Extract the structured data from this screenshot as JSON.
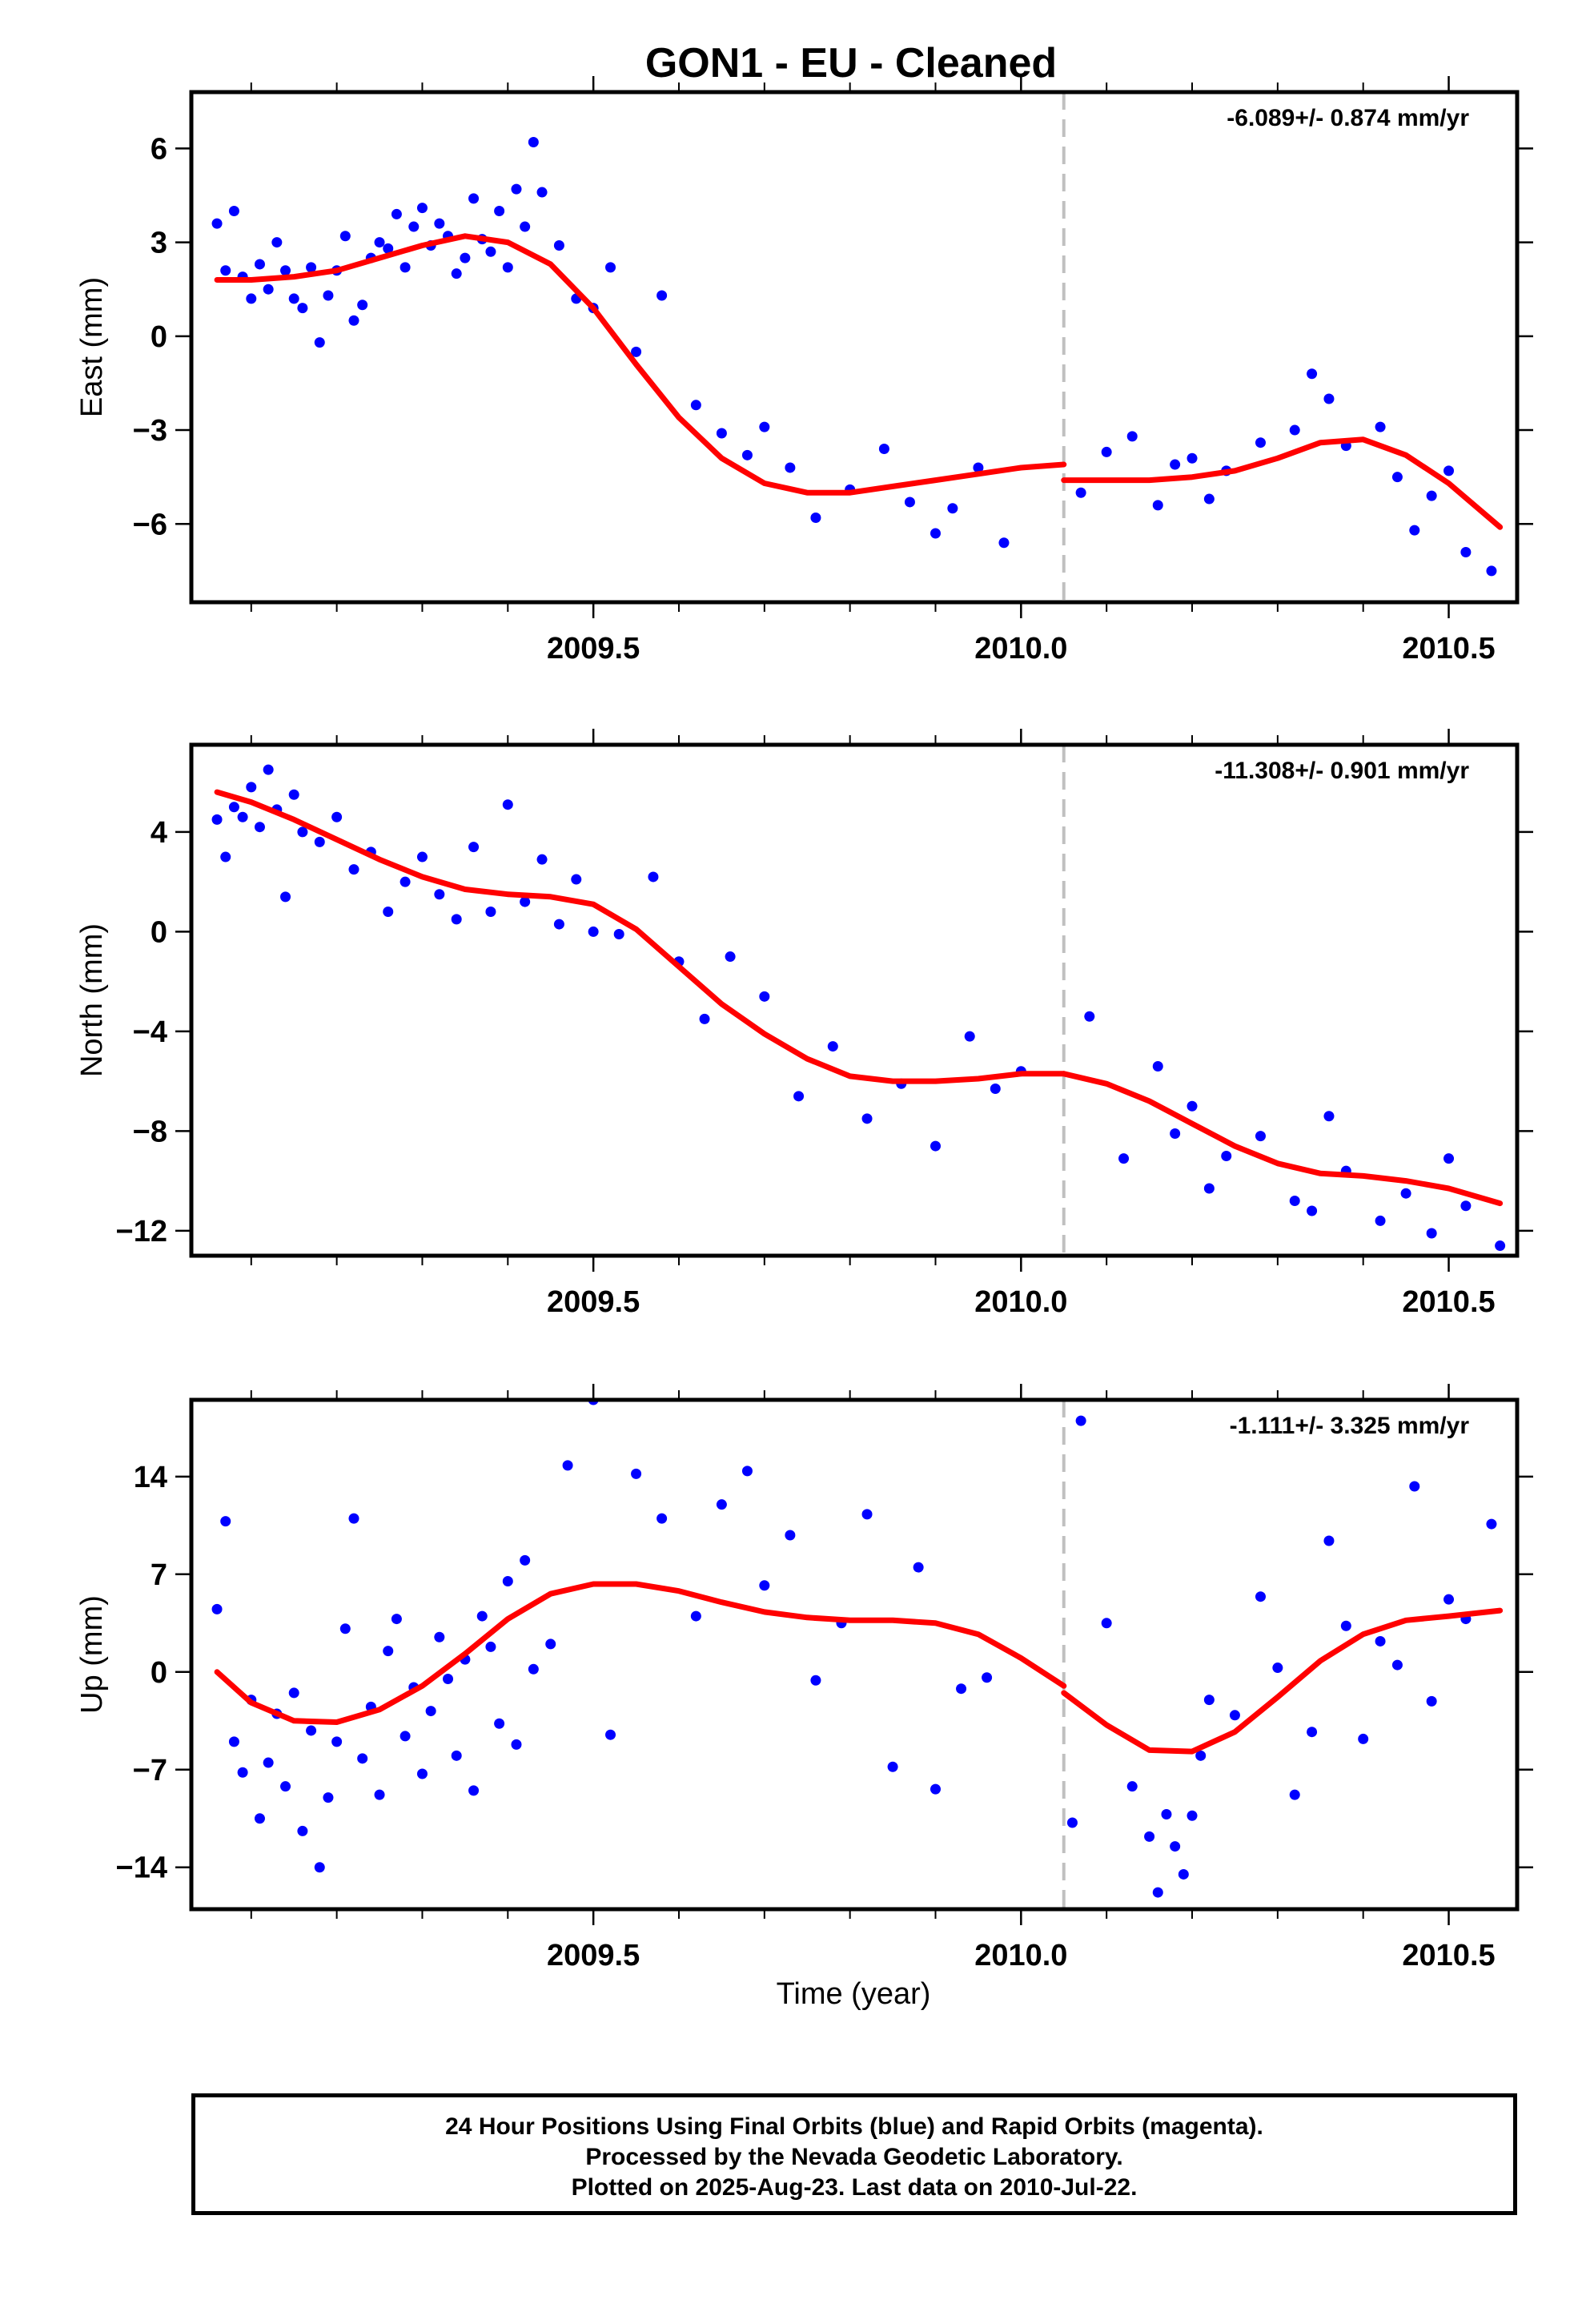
{
  "title": "GON1  - EU - Cleaned",
  "xlabel": "Time (year)",
  "footer": {
    "line1": "24 Hour Positions Using Final Orbits (blue) and Rapid Orbits (magenta).",
    "line2": "Processed by the Nevada Geodetic Laboratory.",
    "line3": "Plotted on 2025-Aug-23. Last data on 2010-Jul-22."
  },
  "colors": {
    "final_orbits": "#0000ff",
    "model": "#ff0000",
    "equipment_change": "#c0c0c0"
  },
  "chart_data": [
    {
      "type": "scatter",
      "ylabel": "East (mm)",
      "rate": "-6.089+/- 0.874 mm/yr",
      "xlim": [
        2009.03,
        2010.58
      ],
      "ylim": [
        -8.5,
        7.8
      ],
      "xticks": [
        2009.5,
        2010.0,
        2010.5
      ],
      "xtick_labels": [
        "2009.5",
        "2010.0",
        "2010.5"
      ],
      "yticks": [
        -6,
        -3,
        0,
        3,
        6
      ],
      "ytick_labels": [
        "−6",
        "−3",
        "0",
        "3",
        "6"
      ],
      "offset_line_x": 2010.05,
      "series": [
        {
          "kind": "points",
          "x": [
            2009.06,
            2009.07,
            2009.08,
            2009.09,
            2009.1,
            2009.11,
            2009.12,
            2009.13,
            2009.14,
            2009.15,
            2009.16,
            2009.17,
            2009.18,
            2009.19,
            2009.2,
            2009.21,
            2009.22,
            2009.23,
            2009.24,
            2009.25,
            2009.26,
            2009.27,
            2009.28,
            2009.29,
            2009.3,
            2009.31,
            2009.32,
            2009.33,
            2009.34,
            2009.35,
            2009.36,
            2009.37,
            2009.38,
            2009.39,
            2009.4,
            2009.41,
            2009.42,
            2009.43,
            2009.44,
            2009.46,
            2009.48,
            2009.5,
            2009.52,
            2009.55,
            2009.58,
            2009.62,
            2009.65,
            2009.68,
            2009.7,
            2009.73,
            2009.76,
            2009.8,
            2009.84,
            2009.87,
            2009.9,
            2009.92,
            2009.95,
            2009.98,
            2010.07,
            2010.1,
            2010.13,
            2010.16,
            2010.18,
            2010.2,
            2010.22,
            2010.24,
            2010.28,
            2010.32,
            2010.34,
            2010.36,
            2010.38,
            2010.42,
            2010.44,
            2010.46,
            2010.48,
            2010.5,
            2010.52,
            2010.55
          ],
          "y": [
            3.6,
            2.1,
            4.0,
            1.9,
            1.2,
            2.3,
            1.5,
            3.0,
            2.1,
            1.2,
            0.9,
            2.2,
            -0.2,
            1.3,
            2.1,
            3.2,
            0.5,
            1.0,
            2.5,
            3.0,
            2.8,
            3.9,
            2.2,
            3.5,
            4.1,
            2.9,
            3.6,
            3.2,
            2.0,
            2.5,
            4.4,
            3.1,
            2.7,
            4.0,
            2.2,
            4.7,
            3.5,
            6.2,
            4.6,
            2.9,
            1.2,
            0.9,
            2.2,
            -0.5,
            1.3,
            -2.2,
            -3.1,
            -3.8,
            -2.9,
            -4.2,
            -5.8,
            -4.9,
            -3.6,
            -5.3,
            -6.3,
            -5.5,
            -4.2,
            -6.6,
            -5.0,
            -3.7,
            -3.2,
            -5.4,
            -4.1,
            -3.9,
            -5.2,
            -4.3,
            -3.4,
            -3.0,
            -1.2,
            -2.0,
            -3.5,
            -2.9,
            -4.5,
            -6.2,
            -5.1,
            -4.3,
            -6.9,
            -7.5
          ]
        },
        {
          "kind": "line",
          "x": [
            2009.06,
            2009.1,
            2009.15,
            2009.2,
            2009.25,
            2009.3,
            2009.35,
            2009.4,
            2009.45,
            2009.5,
            2009.55,
            2009.6,
            2009.65,
            2009.7,
            2009.75,
            2009.8,
            2009.85,
            2009.9,
            2009.95,
            2010.0,
            2010.05
          ],
          "y": [
            1.8,
            1.8,
            1.9,
            2.1,
            2.5,
            2.9,
            3.2,
            3.0,
            2.3,
            0.9,
            -0.9,
            -2.6,
            -3.9,
            -4.7,
            -5.0,
            -5.0,
            -4.8,
            -4.6,
            -4.4,
            -4.2,
            -4.1
          ]
        },
        {
          "kind": "line",
          "x": [
            2010.05,
            2010.1,
            2010.15,
            2010.2,
            2010.25,
            2010.3,
            2010.35,
            2010.4,
            2010.45,
            2010.5,
            2010.56
          ],
          "y": [
            -4.6,
            -4.6,
            -4.6,
            -4.5,
            -4.3,
            -3.9,
            -3.4,
            -3.3,
            -3.8,
            -4.7,
            -6.1
          ]
        }
      ]
    },
    {
      "type": "scatter",
      "ylabel": "North (mm)",
      "rate": "-11.308+/- 0.901 mm/yr",
      "xlim": [
        2009.03,
        2010.58
      ],
      "ylim": [
        -13.0,
        7.5
      ],
      "xticks": [
        2009.5,
        2010.0,
        2010.5
      ],
      "xtick_labels": [
        "2009.5",
        "2010.0",
        "2010.5"
      ],
      "yticks": [
        -12,
        -8,
        -4,
        0,
        4
      ],
      "ytick_labels": [
        "−12",
        "−8",
        "−4",
        "0",
        "4"
      ],
      "offset_line_x": 2010.05,
      "series": [
        {
          "kind": "points",
          "x": [
            2009.06,
            2009.07,
            2009.08,
            2009.09,
            2009.1,
            2009.11,
            2009.12,
            2009.13,
            2009.14,
            2009.15,
            2009.16,
            2009.18,
            2009.2,
            2009.22,
            2009.24,
            2009.26,
            2009.28,
            2009.3,
            2009.32,
            2009.34,
            2009.36,
            2009.38,
            2009.4,
            2009.42,
            2009.44,
            2009.46,
            2009.48,
            2009.5,
            2009.53,
            2009.57,
            2009.6,
            2009.63,
            2009.66,
            2009.7,
            2009.74,
            2009.78,
            2009.82,
            2009.86,
            2009.9,
            2009.94,
            2009.97,
            2010.0,
            2010.08,
            2010.12,
            2010.16,
            2010.18,
            2010.2,
            2010.22,
            2010.24,
            2010.28,
            2010.32,
            2010.34,
            2010.36,
            2010.38,
            2010.42,
            2010.45,
            2010.48,
            2010.5,
            2010.52,
            2010.56
          ],
          "y": [
            4.5,
            3.0,
            5.0,
            4.6,
            5.8,
            4.2,
            6.5,
            4.9,
            1.4,
            5.5,
            4.0,
            3.6,
            4.6,
            2.5,
            3.2,
            0.8,
            2.0,
            3.0,
            1.5,
            0.5,
            3.4,
            0.8,
            5.1,
            1.2,
            2.9,
            0.3,
            2.1,
            0.0,
            -0.1,
            2.2,
            -1.2,
            -3.5,
            -1.0,
            -2.6,
            -6.6,
            -4.6,
            -7.5,
            -6.1,
            -8.6,
            -4.2,
            -6.3,
            -5.6,
            -3.4,
            -9.1,
            -5.4,
            -8.1,
            -7.0,
            -10.3,
            -9.0,
            -8.2,
            -10.8,
            -11.2,
            -7.4,
            -9.6,
            -11.6,
            -10.5,
            -12.1,
            -9.1,
            -11.0,
            -12.6
          ]
        },
        {
          "kind": "line",
          "x": [
            2009.06,
            2009.1,
            2009.15,
            2009.2,
            2009.25,
            2009.3,
            2009.35,
            2009.4,
            2009.45,
            2009.5,
            2009.55,
            2009.6,
            2009.65,
            2009.7,
            2009.75,
            2009.8,
            2009.85,
            2009.9,
            2009.95,
            2010.0,
            2010.05
          ],
          "y": [
            5.6,
            5.2,
            4.5,
            3.7,
            2.9,
            2.2,
            1.7,
            1.5,
            1.4,
            1.1,
            0.1,
            -1.4,
            -2.9,
            -4.1,
            -5.1,
            -5.8,
            -6.0,
            -6.0,
            -5.9,
            -5.7,
            -5.7
          ]
        },
        {
          "kind": "line",
          "x": [
            2010.05,
            2010.1,
            2010.15,
            2010.2,
            2010.25,
            2010.3,
            2010.35,
            2010.4,
            2010.45,
            2010.5,
            2010.56
          ],
          "y": [
            -5.7,
            -6.1,
            -6.8,
            -7.7,
            -8.6,
            -9.3,
            -9.7,
            -9.8,
            -10.0,
            -10.3,
            -10.9
          ]
        }
      ]
    },
    {
      "type": "scatter",
      "ylabel": "Up (mm)",
      "rate": "-1.111+/- 3.325 mm/yr",
      "xlim": [
        2009.03,
        2010.58
      ],
      "ylim": [
        -17.0,
        19.5
      ],
      "xticks": [
        2009.5,
        2010.0,
        2010.5
      ],
      "xtick_labels": [
        "2009.5",
        "2010.0",
        "2010.5"
      ],
      "yticks": [
        -14,
        -7,
        0,
        7,
        14
      ],
      "ytick_labels": [
        "−14",
        "−7",
        "0",
        "7",
        "14"
      ],
      "offset_line_x": 2010.05,
      "series": [
        {
          "kind": "points",
          "x": [
            2009.06,
            2009.07,
            2009.08,
            2009.09,
            2009.1,
            2009.11,
            2009.12,
            2009.13,
            2009.14,
            2009.15,
            2009.16,
            2009.17,
            2009.18,
            2009.19,
            2009.2,
            2009.21,
            2009.22,
            2009.23,
            2009.24,
            2009.25,
            2009.26,
            2009.27,
            2009.28,
            2009.29,
            2009.3,
            2009.31,
            2009.32,
            2009.33,
            2009.34,
            2009.35,
            2009.36,
            2009.37,
            2009.38,
            2009.39,
            2009.4,
            2009.41,
            2009.42,
            2009.43,
            2009.45,
            2009.47,
            2009.5,
            2009.52,
            2009.55,
            2009.58,
            2009.62,
            2009.65,
            2009.68,
            2009.7,
            2009.73,
            2009.76,
            2009.79,
            2009.82,
            2009.85,
            2009.88,
            2009.9,
            2009.93,
            2009.96,
            2010.06,
            2010.07,
            2010.1,
            2010.13,
            2010.15,
            2010.16,
            2010.17,
            2010.18,
            2010.19,
            2010.2,
            2010.21,
            2010.22,
            2010.25,
            2010.28,
            2010.3,
            2010.32,
            2010.34,
            2010.36,
            2010.38,
            2010.4,
            2010.42,
            2010.44,
            2010.46,
            2010.48,
            2010.5,
            2010.52,
            2010.55
          ],
          "y": [
            4.5,
            10.8,
            -5.0,
            -7.2,
            -2.0,
            -10.5,
            -6.5,
            -3.0,
            -8.2,
            -1.5,
            -11.4,
            -4.2,
            -14.0,
            -9.0,
            -5.0,
            3.1,
            11.0,
            -6.2,
            -2.5,
            -8.8,
            1.5,
            3.8,
            -4.6,
            -1.1,
            -7.3,
            -2.8,
            2.5,
            -0.5,
            -6.0,
            0.9,
            -8.5,
            4.0,
            1.8,
            -3.7,
            6.5,
            -5.2,
            8.0,
            0.2,
            2.0,
            14.8,
            19.5,
            -4.5,
            14.2,
            11.0,
            4.0,
            12.0,
            14.4,
            6.2,
            9.8,
            -0.6,
            3.5,
            11.3,
            -6.8,
            7.5,
            -8.4,
            -1.2,
            -0.4,
            -10.8,
            18.0,
            3.5,
            -8.2,
            -11.8,
            -15.8,
            -10.2,
            -12.5,
            -14.5,
            -10.3,
            -6.0,
            -2.0,
            -3.1,
            5.4,
            0.3,
            -8.8,
            -4.3,
            9.4,
            3.3,
            -4.8,
            2.2,
            0.5,
            13.3,
            -2.1,
            5.2,
            3.8,
            10.6
          ]
        },
        {
          "kind": "line",
          "x": [
            2009.06,
            2009.1,
            2009.15,
            2009.2,
            2009.25,
            2009.3,
            2009.35,
            2009.4,
            2009.45,
            2009.5,
            2009.55,
            2009.6,
            2009.65,
            2009.7,
            2009.75,
            2009.8,
            2009.85,
            2009.9,
            2009.95,
            2010.0,
            2010.05
          ],
          "y": [
            0.0,
            -2.2,
            -3.5,
            -3.6,
            -2.7,
            -1.0,
            1.3,
            3.8,
            5.6,
            6.3,
            6.3,
            5.8,
            5.0,
            4.3,
            3.9,
            3.7,
            3.7,
            3.5,
            2.7,
            1.0,
            -1.0
          ]
        },
        {
          "kind": "line",
          "x": [
            2010.05,
            2010.1,
            2010.15,
            2010.2,
            2010.25,
            2010.3,
            2010.35,
            2010.4,
            2010.45,
            2010.5,
            2010.56
          ],
          "y": [
            -1.5,
            -3.8,
            -5.6,
            -5.7,
            -4.3,
            -1.8,
            0.8,
            2.7,
            3.7,
            4.0,
            4.4
          ]
        }
      ]
    }
  ]
}
